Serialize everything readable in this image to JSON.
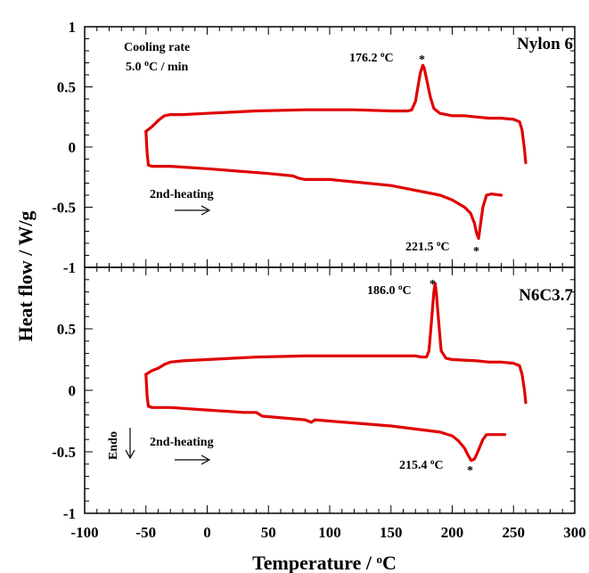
{
  "chart_data": {
    "type": "line",
    "xlabel": "Temperature / ",
    "xlabel_unit_sup": "o",
    "xlabel_unit": "C",
    "ylabel": "Heat flow / W/g",
    "xlim": [
      -100,
      300
    ],
    "x_ticks": [
      "-100",
      "-50",
      "0",
      "50",
      "100",
      "150",
      "200",
      "250",
      "300"
    ],
    "panels": [
      {
        "name": "Nylon 6",
        "ylim": [
          -1,
          1
        ],
        "y_ticks": [
          "1",
          "0.5",
          "0",
          "-0.5",
          "-1"
        ],
        "note_line1": "Cooling rate",
        "note_line2_value": "5.0 ",
        "note_line2_sup": "o",
        "note_line2_unit": "C / min",
        "heating_label": "2nd-heating",
        "peak_cooling": {
          "value": "176.2 ",
          "sup": "o",
          "unit": "C",
          "x": 176.2,
          "y": 0.68
        },
        "peak_heating": {
          "value": "221.5 ",
          "sup": "o",
          "unit": "C",
          "x": 221.5,
          "y": -0.76
        },
        "series": [
          {
            "name": "cooling",
            "x": [
              260,
              259,
              257,
              255,
              250,
              240,
              230,
              220,
              210,
              200,
              190,
              185,
              182,
              179,
              177,
              176,
              174,
              172,
              170,
              167,
              164,
              160,
              150,
              120,
              80,
              40,
              0,
              -20,
              -30,
              -35,
              -40,
              -45,
              -50
            ],
            "y": [
              -0.13,
              -0.02,
              0.14,
              0.21,
              0.23,
              0.24,
              0.24,
              0.25,
              0.26,
              0.26,
              0.28,
              0.32,
              0.42,
              0.57,
              0.66,
              0.68,
              0.62,
              0.5,
              0.38,
              0.31,
              0.3,
              0.3,
              0.3,
              0.31,
              0.31,
              0.3,
              0.28,
              0.27,
              0.27,
              0.26,
              0.22,
              0.17,
              0.13
            ]
          },
          {
            "name": "2nd-heating",
            "x": [
              -50,
              -49,
              -48,
              -45,
              -30,
              0,
              50,
              70,
              75,
              80,
              100,
              150,
              190,
              200,
              210,
              215,
              218,
              220,
              221.5,
              223,
              225,
              228,
              232,
              240
            ],
            "y": [
              0.13,
              -0.05,
              -0.15,
              -0.16,
              -0.16,
              -0.18,
              -0.22,
              -0.24,
              -0.26,
              -0.27,
              -0.27,
              -0.32,
              -0.4,
              -0.44,
              -0.5,
              -0.55,
              -0.63,
              -0.72,
              -0.76,
              -0.65,
              -0.5,
              -0.4,
              -0.39,
              -0.4
            ]
          }
        ]
      },
      {
        "name": "N6C3.7",
        "ylim": [
          -1,
          1
        ],
        "y_ticks": [
          "0.5",
          "0",
          "-0.5",
          "-1"
        ],
        "endo_label": "Endo",
        "heating_label": "2nd-heating",
        "peak_cooling": {
          "value": "186.0 ",
          "sup": "o",
          "unit": "C",
          "x": 186.0,
          "y": 0.87
        },
        "peak_heating": {
          "value": "215.4 ",
          "sup": "o",
          "unit": "C",
          "x": 215.4,
          "y": -0.57
        },
        "series": [
          {
            "name": "cooling",
            "x": [
              260,
              259,
              257,
              255,
              250,
              240,
              230,
              220,
              200,
              195,
              191,
              189,
              187,
              186,
              185,
              183,
              181,
              179,
              175,
              170,
              160,
              150,
              120,
              80,
              40,
              0,
              -20,
              -30,
              -35,
              -40,
              -45,
              -50
            ],
            "y": [
              -0.1,
              0.0,
              0.13,
              0.2,
              0.22,
              0.23,
              0.23,
              0.24,
              0.25,
              0.26,
              0.32,
              0.55,
              0.8,
              0.87,
              0.8,
              0.55,
              0.32,
              0.27,
              0.27,
              0.28,
              0.28,
              0.28,
              0.28,
              0.28,
              0.27,
              0.25,
              0.24,
              0.23,
              0.21,
              0.18,
              0.16,
              0.13
            ]
          },
          {
            "name": "2nd-heating",
            "x": [
              -50,
              -49,
              -48,
              -45,
              -30,
              0,
              30,
              40,
              45,
              80,
              85,
              88,
              100,
              150,
              190,
              200,
              205,
              210,
              213,
              215.4,
              218,
              220,
              225,
              228,
              232,
              243
            ],
            "y": [
              0.13,
              -0.05,
              -0.13,
              -0.14,
              -0.14,
              -0.16,
              -0.18,
              -0.18,
              -0.21,
              -0.24,
              -0.26,
              -0.24,
              -0.25,
              -0.29,
              -0.34,
              -0.37,
              -0.41,
              -0.47,
              -0.53,
              -0.57,
              -0.56,
              -0.52,
              -0.4,
              -0.36,
              -0.36,
              -0.36
            ]
          }
        ]
      }
    ]
  }
}
